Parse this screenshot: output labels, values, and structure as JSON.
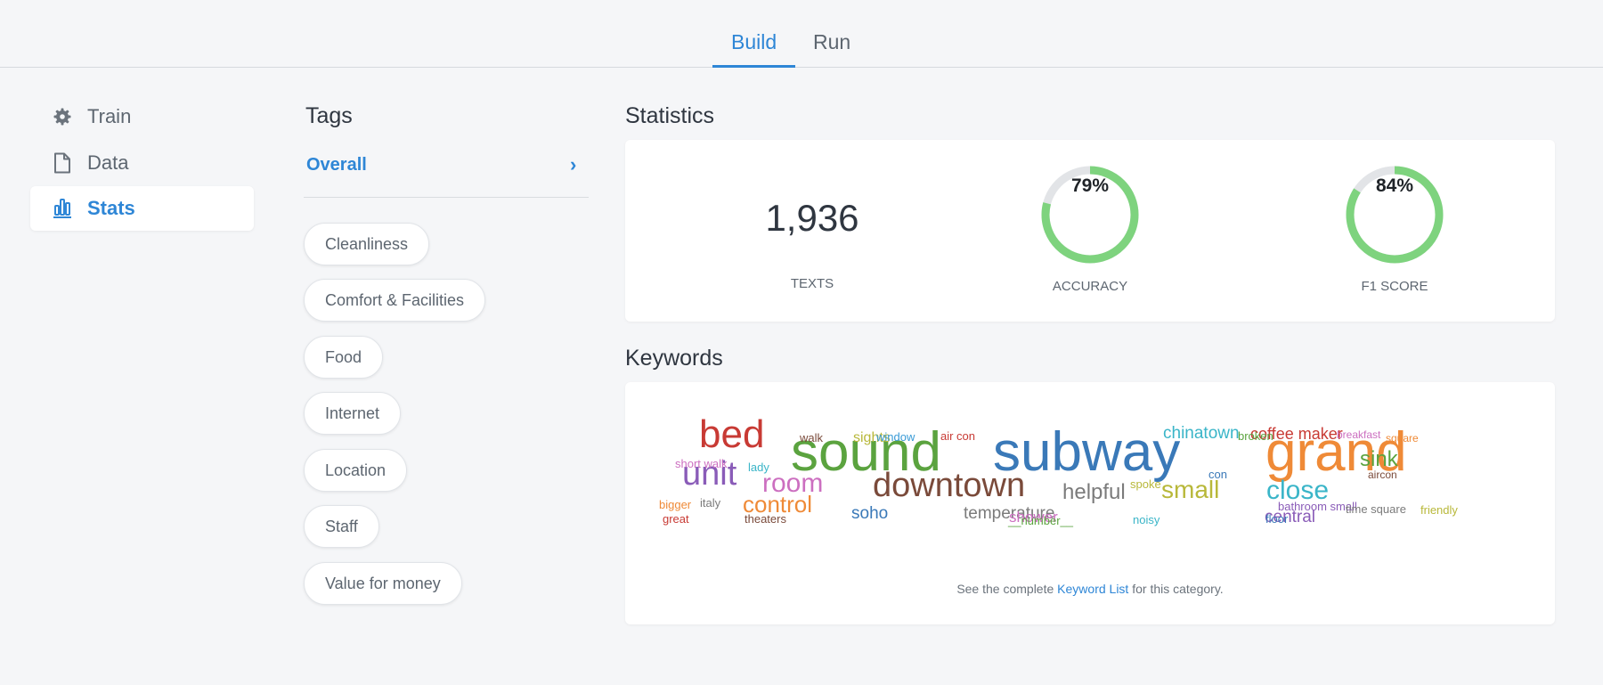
{
  "top_tabs": [
    {
      "label": "Build",
      "active": true
    },
    {
      "label": "Run",
      "active": false
    }
  ],
  "sidebar": {
    "items": [
      {
        "label": "Train",
        "icon": "gear-icon",
        "active": false
      },
      {
        "label": "Data",
        "icon": "file-icon",
        "active": false
      },
      {
        "label": "Stats",
        "icon": "bar-chart-icon",
        "active": true
      }
    ]
  },
  "tags": {
    "title": "Tags",
    "overall_label": "Overall",
    "chevron": "›",
    "items": [
      "Cleanliness",
      "Comfort & Facilities",
      "Food",
      "Internet",
      "Location",
      "Staff",
      "Value for money"
    ]
  },
  "statistics": {
    "title": "Statistics",
    "texts": {
      "value": "1,936",
      "label": "TEXTS"
    },
    "accuracy": {
      "value": "79%",
      "fraction": 0.79,
      "label": "ACCURACY"
    },
    "f1": {
      "value": "84%",
      "fraction": 0.84,
      "label": "F1 SCORE"
    }
  },
  "colors": {
    "accent": "#2e86d6",
    "ring_fill": "#7ed37e",
    "ring_track": "#e2e4e7"
  },
  "keywords": {
    "title": "Keywords",
    "words": [
      {
        "text": "sound",
        "color": "#5ba33f"
      },
      {
        "text": "subway",
        "color": "#3a79b8"
      },
      {
        "text": "grand",
        "color": "#ef8a37"
      },
      {
        "text": "bed",
        "color": "#c83a34"
      },
      {
        "text": "unit",
        "color": "#8a5cb8"
      },
      {
        "text": "room",
        "color": "#cc6fc0"
      },
      {
        "text": "downtown",
        "color": "#7a4a3a"
      },
      {
        "text": "helpful",
        "color": "#7b7b7b"
      },
      {
        "text": "small",
        "color": "#b8b83a"
      },
      {
        "text": "close",
        "color": "#3ab5c8"
      },
      {
        "text": "sink",
        "color": "#5ba33f"
      },
      {
        "text": "control",
        "color": "#ef8a37"
      },
      {
        "text": "soho",
        "color": "#3a79b8"
      },
      {
        "text": "temperature",
        "color": "#7b7b7b"
      },
      {
        "text": "shower",
        "color": "#cc6fc0"
      },
      {
        "text": "central",
        "color": "#8a5cb8"
      },
      {
        "text": "chinatown",
        "color": "#3ab5c8"
      },
      {
        "text": "coffee maker",
        "color": "#c83a34"
      },
      {
        "text": "sights",
        "color": "#b8b83a"
      },
      {
        "text": "walk",
        "color": "#7a4a3a"
      },
      {
        "text": "window",
        "color": "#3a9bd6"
      },
      {
        "text": "air con",
        "color": "#c83a34"
      },
      {
        "text": "broken",
        "color": "#5ba33f"
      },
      {
        "text": "breakfast",
        "color": "#cc6fc0"
      },
      {
        "text": "square",
        "color": "#ef8a37"
      },
      {
        "text": "short walk",
        "color": "#cc6fc0"
      },
      {
        "text": "lady",
        "color": "#3ab5c8"
      },
      {
        "text": "con",
        "color": "#3a79b8"
      },
      {
        "text": "aircon",
        "color": "#7a4a3a"
      },
      {
        "text": "spoke",
        "color": "#b8b83a"
      },
      {
        "text": "bigger",
        "color": "#ef8a37"
      },
      {
        "text": "italy",
        "color": "#7b7b7b"
      },
      {
        "text": "great",
        "color": "#c83a34"
      },
      {
        "text": "theaters",
        "color": "#7a4a3a"
      },
      {
        "text": "__number__",
        "color": "#5ba33f"
      },
      {
        "text": "noisy",
        "color": "#3ab5c8"
      },
      {
        "text": "bathroom small",
        "color": "#8a5cb8"
      },
      {
        "text": "floor",
        "color": "#3a79b8"
      },
      {
        "text": "friendly",
        "color": "#b8b83a"
      },
      {
        "text": "time square",
        "color": "#7b7b7b"
      }
    ],
    "footer_prefix": "See the complete",
    "footer_link": "Keyword List",
    "footer_suffix": "for this category."
  }
}
